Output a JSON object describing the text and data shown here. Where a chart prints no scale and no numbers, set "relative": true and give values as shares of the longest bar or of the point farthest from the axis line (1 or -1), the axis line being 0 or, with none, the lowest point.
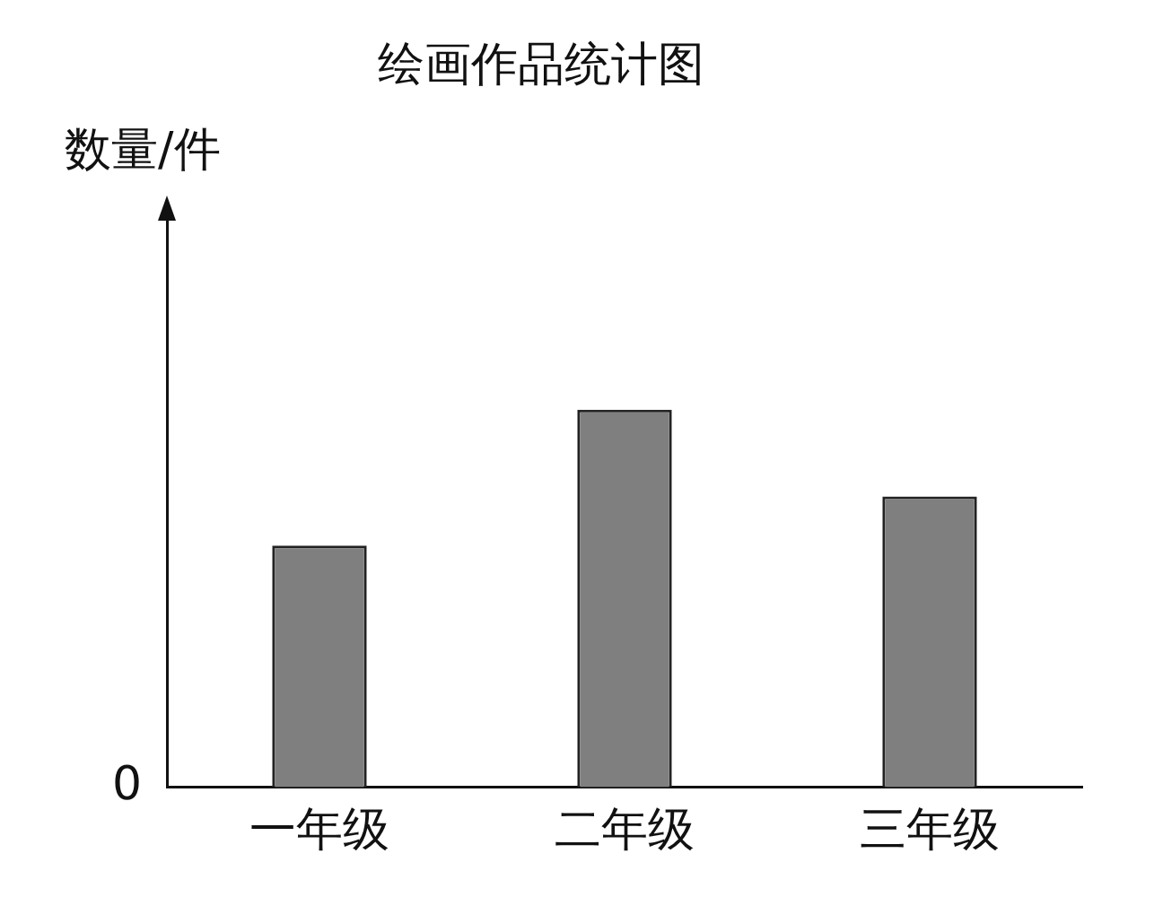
{
  "chart_data": {
    "type": "bar",
    "title": "绘画作品统计图",
    "ylabel": "数量/件",
    "categories": [
      "一年级",
      "二年级",
      "三年级"
    ],
    "values": [
      0.64,
      1,
      0.77
    ],
    "color": "#7f7f7f",
    "relative": true,
    "grid": false,
    "legend": false,
    "annotations": [
      "0"
    ]
  }
}
